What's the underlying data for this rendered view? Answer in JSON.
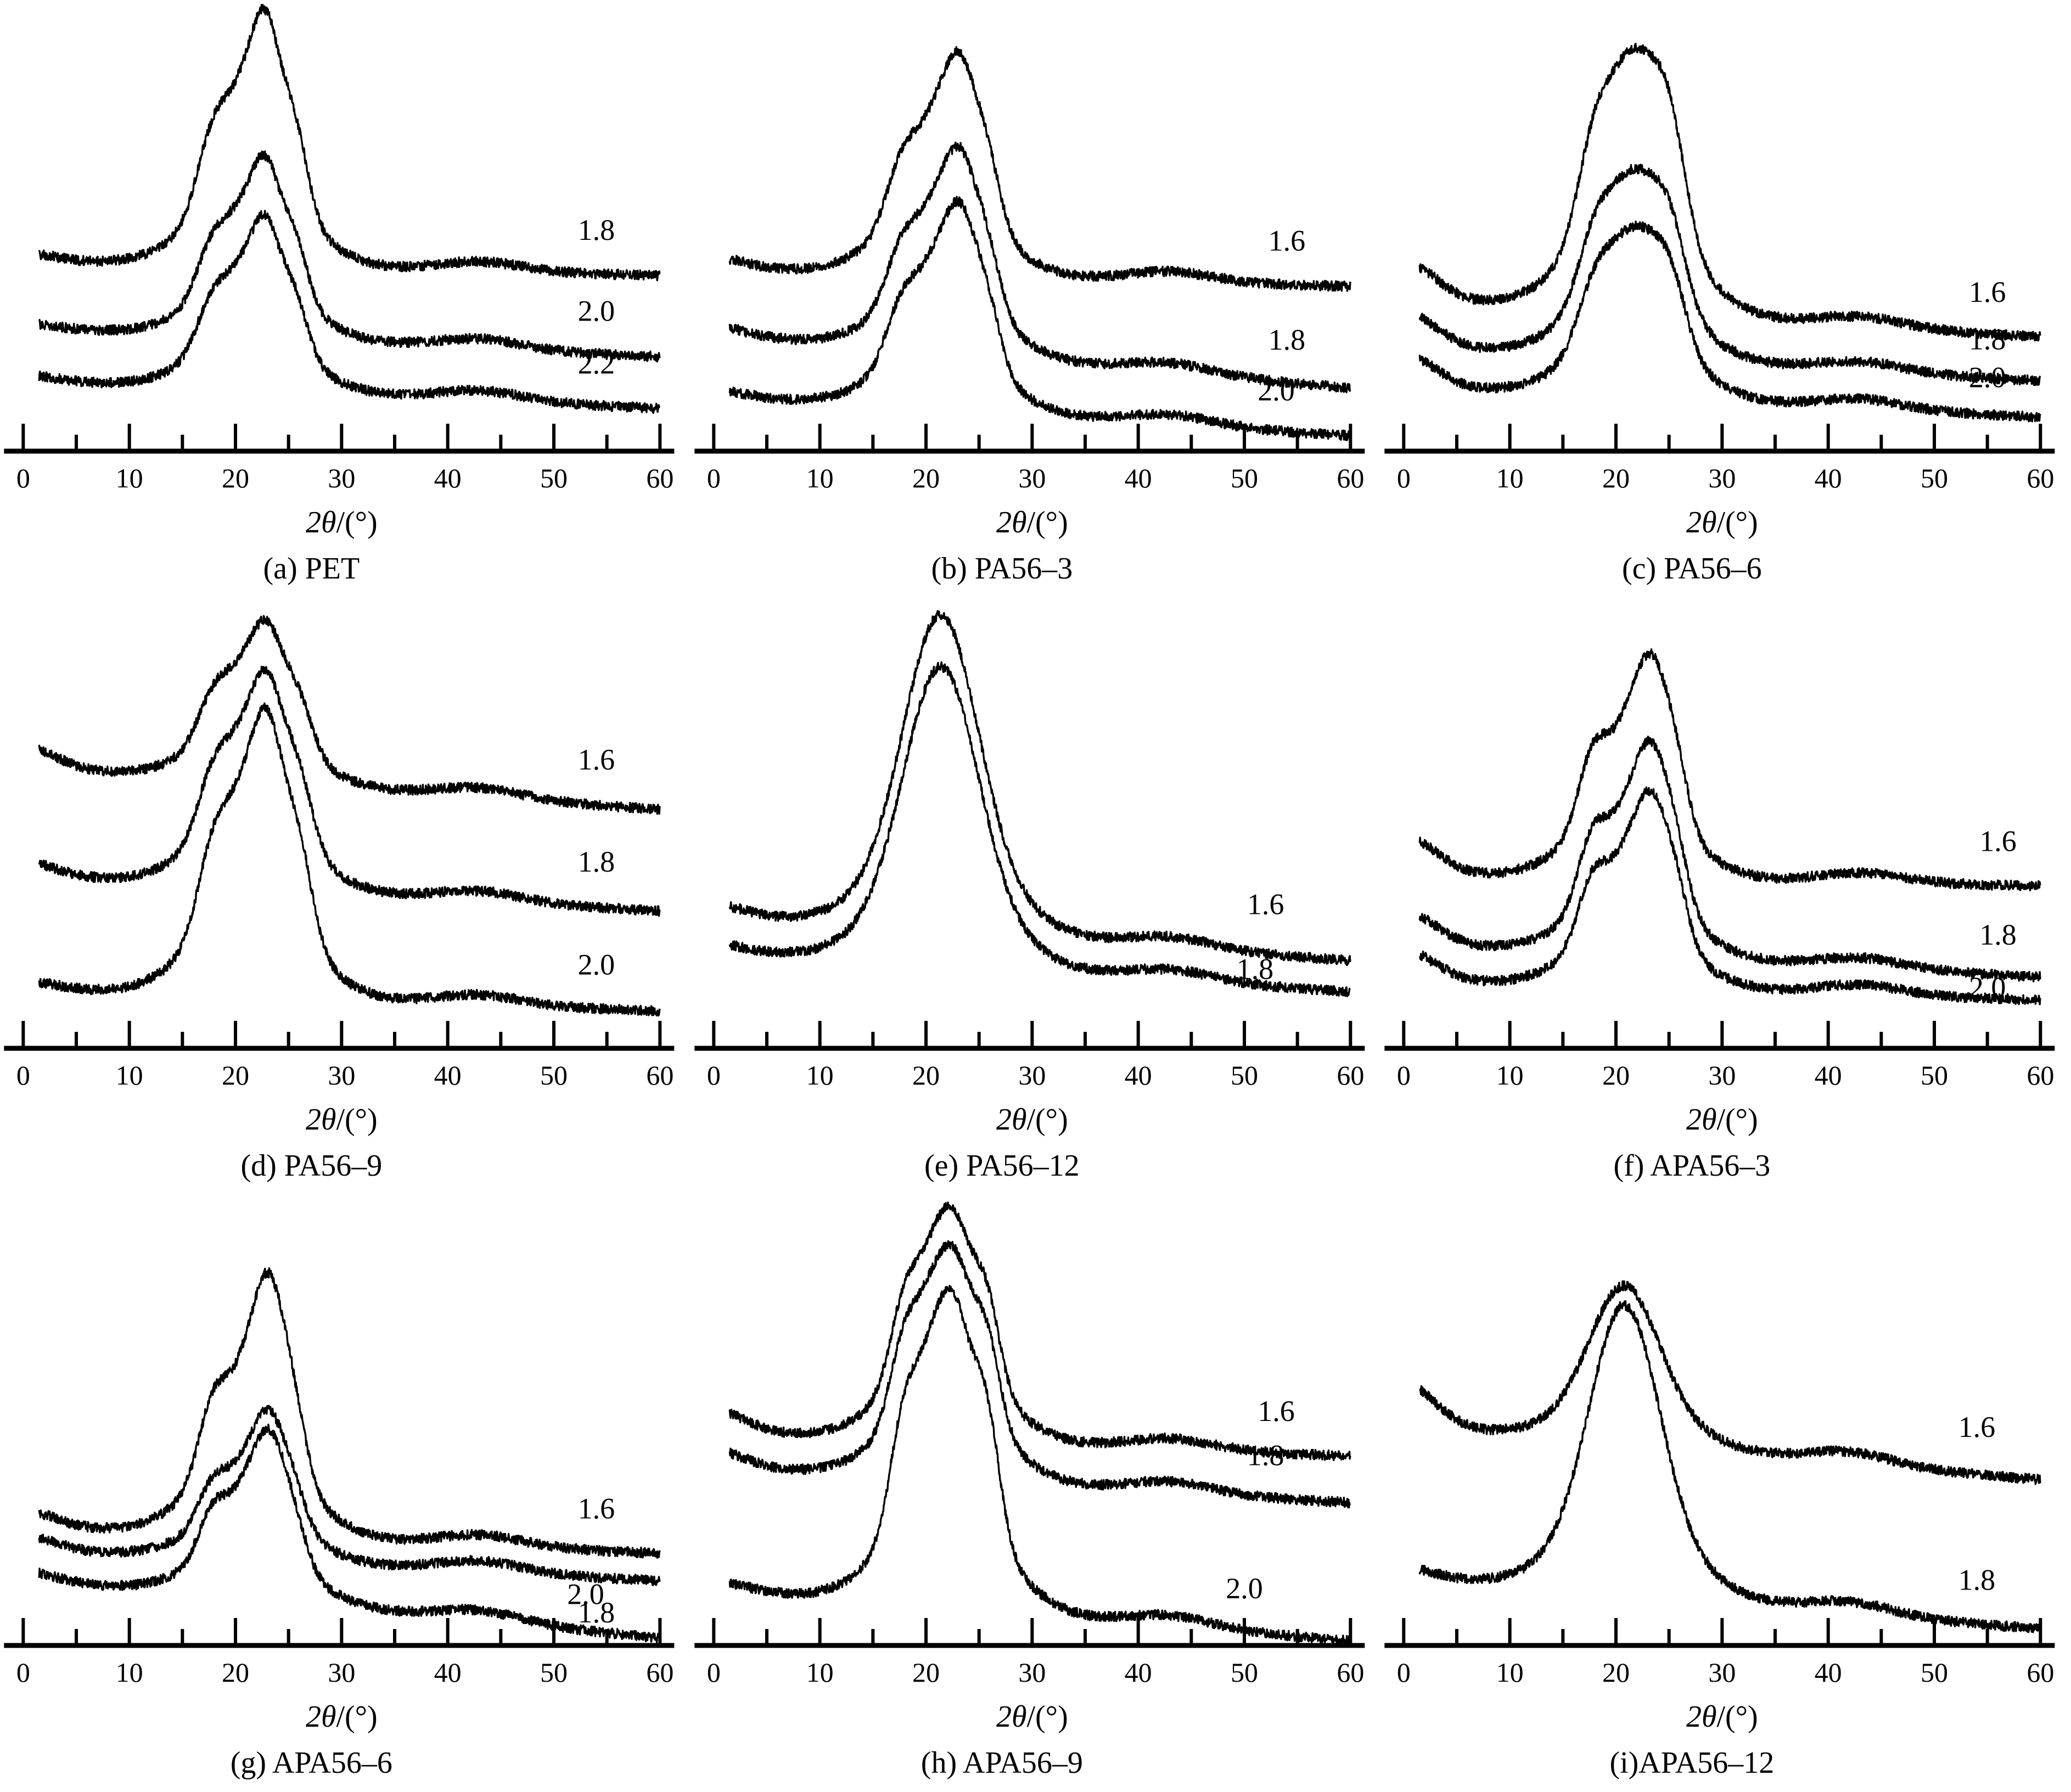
{
  "figure": {
    "title": "",
    "background": "#ffffff",
    "ink_color": "#000000",
    "layout": "3x3-grid-of-xrd-patterns",
    "y_axis_shown": false,
    "y_units_note": "intensity, arbitrary units (no y axis drawn)"
  },
  "chart_data": [
    {
      "type": "line",
      "panel": "a",
      "caption": "(a) PET",
      "xlabel": "2θ/(°)",
      "xlabel_italic_part": "2θ",
      "xlabel_rest": "/(°)",
      "x_range": [
        0,
        60
      ],
      "x_major_ticks": [
        0,
        10,
        20,
        30,
        40,
        50,
        60
      ],
      "x_minor_tick_step": 5,
      "curve_x_start": 1.5,
      "grid": false,
      "peaks": [
        [
          17.8,
          1.5,
          0.5
        ],
        [
          21.3,
          1.9,
          0.8
        ],
        [
          23.0,
          1.2,
          0.7
        ],
        [
          25.5,
          1.3,
          0.62
        ],
        [
          21.5,
          5.0,
          0.55
        ]
      ],
      "secondary_bump": [
        43,
        4,
        18
      ],
      "series": [
        {
          "label": "1.8",
          "draw_ratio": 1.8,
          "base_start": 344,
          "base_end": 320,
          "peak_height": 806,
          "low_angle_rise": 15,
          "label_x": 54,
          "label_dy": 62,
          "seed": 11
        },
        {
          "label": "2.0",
          "draw_ratio": 2.0,
          "base_start": 220,
          "base_end": 172,
          "peak_height": 540,
          "low_angle_rise": 10,
          "label_x": 54,
          "label_dy": 60,
          "seed": 12
        },
        {
          "label": "2.2",
          "draw_ratio": 2.2,
          "base_start": 125,
          "base_end": 78,
          "peak_height": 430,
          "low_angle_rise": 10,
          "label_x": 54,
          "label_dy": 58,
          "seed": 13
        }
      ]
    },
    {
      "type": "line",
      "panel": "b",
      "caption": "(b) PA56–3",
      "xlabel": "2θ/(°)",
      "xlabel_italic_part": "2θ",
      "xlabel_rest": "/(°)",
      "x_range": [
        0,
        60
      ],
      "x_major_ticks": [
        0,
        10,
        20,
        30,
        40,
        50,
        60
      ],
      "x_minor_tick_step": 5,
      "curve_x_start": 1.5,
      "grid": false,
      "peaks": [
        [
          17.7,
          1.5,
          0.45
        ],
        [
          21.4,
          1.9,
          0.75
        ],
        [
          23.4,
          1.3,
          0.68
        ],
        [
          25.7,
          1.3,
          0.55
        ],
        [
          21.5,
          5.0,
          0.58
        ]
      ],
      "secondary_bump": [
        43,
        4,
        18
      ],
      "series": [
        {
          "label": "1.6",
          "draw_ratio": 1.6,
          "base_start": 330,
          "base_end": 300,
          "peak_height": 728,
          "low_angle_rise": 20,
          "label_x": 54,
          "label_dy": 62,
          "seed": 21
        },
        {
          "label": "1.8",
          "draw_ratio": 1.8,
          "base_start": 205,
          "base_end": 115,
          "peak_height": 556,
          "low_angle_rise": 15,
          "label_x": 54,
          "label_dy": 60,
          "seed": 22
        },
        {
          "label": "2.0",
          "draw_ratio": 2.0,
          "base_start": 95,
          "base_end": 28,
          "peak_height": 455,
          "low_angle_rise": 10,
          "label_x": 53,
          "label_dy": 55,
          "seed": 23
        }
      ]
    },
    {
      "type": "line",
      "panel": "c",
      "caption": "(c) PA56–6",
      "xlabel": "2θ/(°)",
      "xlabel_italic_part": "2θ",
      "xlabel_rest": "/(°)",
      "x_range": [
        0,
        60
      ],
      "x_major_ticks": [
        0,
        10,
        20,
        30,
        40,
        50,
        60
      ],
      "x_minor_tick_step": 5,
      "curve_x_start": 1.5,
      "grid": false,
      "peaks": [
        [
          17.9,
          1.6,
          0.42
        ],
        [
          21.8,
          2.4,
          0.85
        ],
        [
          25.2,
          1.5,
          0.45
        ],
        [
          21.5,
          5.2,
          0.55
        ]
      ],
      "secondary_bump": [
        43,
        4,
        18
      ],
      "series": [
        {
          "label": "1.6",
          "draw_ratio": 1.6,
          "base_start": 270,
          "base_end": 208,
          "peak_height": 735,
          "low_angle_rise": 70,
          "label_x": 55,
          "label_dy": 58,
          "seed": 31
        },
        {
          "label": "1.8",
          "draw_ratio": 1.8,
          "base_start": 185,
          "base_end": 128,
          "peak_height": 515,
          "low_angle_rise": 65,
          "label_x": 55,
          "label_dy": 52,
          "seed": 32
        },
        {
          "label": "2.0",
          "draw_ratio": 2.0,
          "base_start": 112,
          "base_end": 62,
          "peak_height": 410,
          "low_angle_rise": 60,
          "label_x": 55,
          "label_dy": 50,
          "seed": 33
        }
      ]
    },
    {
      "type": "line",
      "panel": "d",
      "caption": "(d) PA56–9",
      "xlabel": "2θ/(°)",
      "xlabel_italic_part": "2θ",
      "xlabel_rest": "/(°)",
      "x_range": [
        0,
        60
      ],
      "x_major_ticks": [
        0,
        10,
        20,
        30,
        40,
        50,
        60
      ],
      "x_minor_tick_step": 5,
      "curve_x_start": 1.5,
      "grid": false,
      "peaks": [
        [
          17.9,
          1.5,
          0.48
        ],
        [
          21.4,
          1.9,
          0.75
        ],
        [
          23.2,
          1.3,
          0.66
        ],
        [
          25.8,
          1.4,
          0.6
        ],
        [
          21.5,
          5.0,
          0.58
        ]
      ],
      "secondary_bump": [
        43,
        4,
        18
      ],
      "series": [
        {
          "label": "1.6",
          "draw_ratio": 1.6,
          "base_start": 505,
          "base_end": 435,
          "peak_height": 780,
          "low_angle_rise": 40,
          "label_x": 54,
          "label_dy": 65,
          "seed": 41
        },
        {
          "label": "1.8",
          "draw_ratio": 1.8,
          "base_start": 310,
          "base_end": 250,
          "peak_height": 690,
          "low_angle_rise": 25,
          "label_x": 54,
          "label_dy": 65,
          "seed": 42
        },
        {
          "label": "2.0",
          "draw_ratio": 2.0,
          "base_start": 105,
          "base_end": 68,
          "peak_height": 620,
          "low_angle_rise": 15,
          "label_x": 54,
          "label_dy": 62,
          "seed": 43
        }
      ]
    },
    {
      "type": "line",
      "panel": "e",
      "caption": "(e) PA56–12",
      "xlabel": "2θ/(°)",
      "xlabel_italic_part": "2θ",
      "xlabel_rest": "/(°)",
      "x_range": [
        0,
        60
      ],
      "x_major_ticks": [
        0,
        10,
        20,
        30,
        40,
        50,
        60
      ],
      "x_minor_tick_step": 5,
      "curve_x_start": 1.5,
      "grid": false,
      "peaks": [
        [
          21.4,
          3.4,
          1.0
        ],
        [
          21.5,
          6.0,
          0.28
        ]
      ],
      "secondary_bump": [
        43,
        4,
        20
      ],
      "series": [
        {
          "label": "1.6",
          "draw_ratio": 1.6,
          "base_start": 235,
          "base_end": 160,
          "peak_height": 790,
          "low_angle_rise": 20,
          "label_x": 52,
          "label_dy": 72,
          "seed": 51
        },
        {
          "label": "1.8",
          "draw_ratio": 1.8,
          "base_start": 170,
          "base_end": 103,
          "peak_height": 695,
          "low_angle_rise": 15,
          "label_x": 51,
          "label_dy": 10,
          "seed": 52
        }
      ]
    },
    {
      "type": "line",
      "panel": "f",
      "caption": "(f) APA56–3",
      "xlabel": "2θ/(°)",
      "xlabel_italic_part": "2θ",
      "xlabel_rest": "/(°)",
      "x_range": [
        0,
        60
      ],
      "x_major_ticks": [
        0,
        10,
        20,
        30,
        40,
        50,
        60
      ],
      "x_minor_tick_step": 5,
      "curve_x_start": 1.5,
      "grid": false,
      "peaks": [
        [
          17.8,
          1.4,
          0.55
        ],
        [
          21.6,
          1.8,
          0.75
        ],
        [
          23.4,
          1.2,
          0.6
        ],
        [
          25.4,
          1.3,
          0.62
        ],
        [
          21.5,
          5.0,
          0.55
        ]
      ],
      "secondary_bump": [
        43,
        4,
        18
      ],
      "series": [
        {
          "label": "1.6",
          "draw_ratio": 1.6,
          "base_start": 315,
          "base_end": 296,
          "peak_height": 720,
          "low_angle_rise": 70,
          "label_x": 56,
          "label_dy": 62,
          "seed": 61
        },
        {
          "label": "1.8",
          "draw_ratio": 1.8,
          "base_start": 185,
          "base_end": 130,
          "peak_height": 560,
          "low_angle_rise": 60,
          "label_x": 56,
          "label_dy": 55,
          "seed": 62
        },
        {
          "label": "2.0",
          "draw_ratio": 2.0,
          "base_start": 120,
          "base_end": 88,
          "peak_height": 470,
          "low_angle_rise": 55,
          "label_x": 55,
          "label_dy": 2,
          "seed": 63
        }
      ]
    },
    {
      "type": "line",
      "panel": "g",
      "caption": "(g) APA56–6",
      "xlabel": "2θ/(°)",
      "xlabel_italic_part": "2θ",
      "xlabel_rest": "/(°)",
      "x_range": [
        0,
        60
      ],
      "x_major_ticks": [
        0,
        10,
        20,
        30,
        40,
        50,
        60
      ],
      "x_minor_tick_step": 5,
      "curve_x_start": 1.5,
      "grid": false,
      "peaks": [
        [
          17.9,
          1.4,
          0.5
        ],
        [
          21.7,
          1.8,
          0.78
        ],
        [
          23.3,
          1.2,
          0.62
        ],
        [
          25.3,
          1.3,
          0.55
        ],
        [
          21.5,
          5.0,
          0.55
        ]
      ],
      "secondary_bump": [
        43,
        4,
        20
      ],
      "series": [
        {
          "label": "1.6",
          "draw_ratio": 1.6,
          "base_start": 212,
          "base_end": 168,
          "peak_height": 680,
          "low_angle_rise": 30,
          "label_x": 54,
          "label_dy": 58,
          "seed": 71
        },
        {
          "label": "1.8",
          "draw_ratio": 1.8,
          "base_start": 170,
          "base_end": 118,
          "peak_height": 430,
          "low_angle_rise": 25,
          "label_x": 54,
          "label_dy": -82,
          "seed": 72
        },
        {
          "label": "2.0",
          "draw_ratio": 2.0,
          "base_start": 112,
          "base_end": 14,
          "peak_height": 395,
          "low_angle_rise": 15,
          "label_x": 53,
          "label_dy": 48,
          "seed": 73
        }
      ]
    },
    {
      "type": "line",
      "panel": "h",
      "caption": "(h) APA56–9",
      "xlabel": "2θ/(°)",
      "xlabel_italic_part": "2θ",
      "xlabel_rest": "/(°)",
      "x_range": [
        0,
        60
      ],
      "x_major_ticks": [
        0,
        10,
        20,
        30,
        40,
        50,
        60
      ],
      "x_minor_tick_step": 5,
      "curve_x_start": 1.5,
      "grid": false,
      "peaks": [
        [
          18.0,
          1.4,
          0.55
        ],
        [
          20.9,
          1.5,
          0.7
        ],
        [
          23.0,
          1.3,
          0.66
        ],
        [
          25.6,
          1.3,
          0.62
        ],
        [
          21.8,
          5.0,
          0.55
        ]
      ],
      "secondary_bump": [
        43,
        4,
        20
      ],
      "series": [
        {
          "label": "1.6",
          "draw_ratio": 1.6,
          "base_start": 385,
          "base_end": 345,
          "peak_height": 800,
          "low_angle_rise": 40,
          "label_x": 53,
          "label_dy": 58,
          "seed": 81
        },
        {
          "label": "1.8",
          "draw_ratio": 1.8,
          "base_start": 320,
          "base_end": 260,
          "peak_height": 730,
          "low_angle_rise": 30,
          "label_x": 52,
          "label_dy": 58,
          "seed": 82
        },
        {
          "label": "2.0",
          "draw_ratio": 2.0,
          "base_start": 95,
          "base_end": 8,
          "peak_height": 650,
          "low_angle_rise": 15,
          "label_x": 50,
          "label_dy": 58,
          "seed": 83
        }
      ]
    },
    {
      "type": "line",
      "panel": "i",
      "caption": "(i)APA56–12",
      "xlabel": "2θ/(°)",
      "xlabel_italic_part": "2θ",
      "xlabel_rest": "/(°)",
      "x_range": [
        0,
        60
      ],
      "x_major_ticks": [
        0,
        10,
        20,
        30,
        40,
        50,
        60
      ],
      "x_minor_tick_step": 5,
      "curve_x_start": 1.5,
      "grid": false,
      "peaks": [
        [
          20.8,
          3.2,
          1.0
        ],
        [
          21.0,
          6.0,
          0.28
        ]
      ],
      "secondary_bump": [
        42,
        4,
        22
      ],
      "series": [
        {
          "label": "1.6",
          "draw_ratio": 1.6,
          "base_start": 390,
          "base_end": 302,
          "peak_height": 655,
          "low_angle_rise": 80,
          "label_x": 54,
          "label_dy": 68,
          "seed": 91
        },
        {
          "label": "1.8",
          "draw_ratio": 1.8,
          "base_start": 115,
          "base_end": 30,
          "peak_height": 620,
          "low_angle_rise": 20,
          "label_x": 54,
          "label_dy": 62,
          "seed": 92
        }
      ]
    }
  ]
}
